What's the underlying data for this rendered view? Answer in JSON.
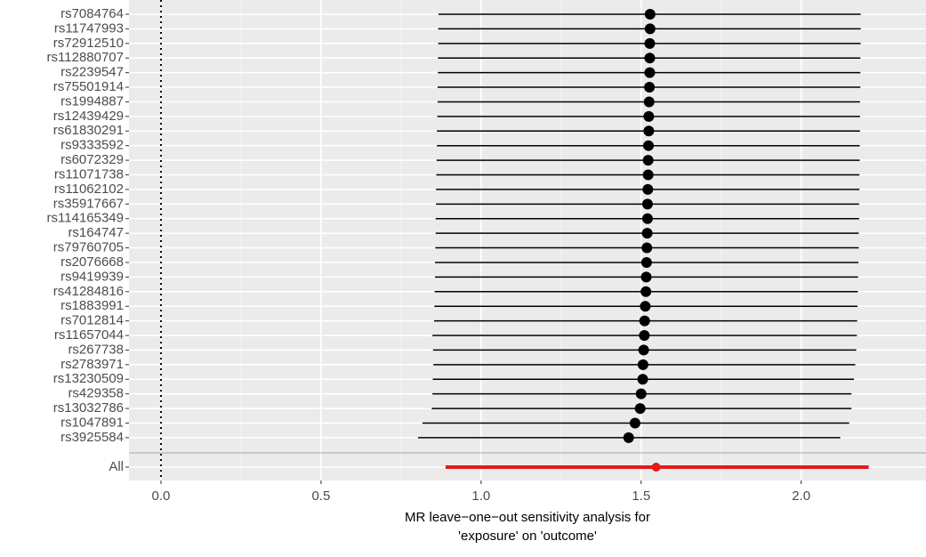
{
  "chart_data": {
    "type": "forest",
    "xlabel": [
      "MR leave−one−out sensitivity analysis for",
      "'exposure' on 'outcome'"
    ],
    "categories": [
      "rs7084764",
      "rs11747993",
      "rs72912510",
      "rs112880707",
      "rs2239547",
      "rs75501914",
      "rs1994887",
      "rs12439429",
      "rs61830291",
      "rs9333592",
      "rs6072329",
      "rs11071738",
      "rs11062102",
      "rs35917667",
      "rs114165349",
      "rs164747",
      "rs79760705",
      "rs2076668",
      "rs9419939",
      "rs41284816",
      "rs1883991",
      "rs7012814",
      "rs11657044",
      "rs267738",
      "rs2783971",
      "rs13230509",
      "rs429358",
      "rs13032786",
      "rs1047891",
      "rs3925584",
      "All"
    ],
    "values": [
      1.528,
      1.528,
      1.527,
      1.527,
      1.527,
      1.526,
      1.525,
      1.524,
      1.524,
      1.523,
      1.522,
      1.522,
      1.521,
      1.52,
      1.52,
      1.519,
      1.518,
      1.517,
      1.516,
      1.515,
      1.513,
      1.511,
      1.51,
      1.508,
      1.506,
      1.505,
      1.5,
      1.497,
      1.481,
      1.461,
      1.547
    ],
    "lower": [
      0.867,
      0.866,
      0.866,
      0.865,
      0.865,
      0.864,
      0.864,
      0.863,
      0.862,
      0.862,
      0.861,
      0.86,
      0.859,
      0.859,
      0.858,
      0.858,
      0.857,
      0.856,
      0.856,
      0.855,
      0.854,
      0.853,
      0.848,
      0.85,
      0.851,
      0.849,
      0.848,
      0.846,
      0.817,
      0.803,
      0.889
    ],
    "upper": [
      2.186,
      2.186,
      2.186,
      2.185,
      2.185,
      2.185,
      2.184,
      2.184,
      2.184,
      2.183,
      2.183,
      2.182,
      2.182,
      2.181,
      2.181,
      2.18,
      2.18,
      2.179,
      2.178,
      2.177,
      2.176,
      2.175,
      2.174,
      2.172,
      2.169,
      2.165,
      2.157,
      2.157,
      2.15,
      2.122,
      2.211
    ],
    "colors": [
      "#000000",
      "#000000",
      "#000000",
      "#000000",
      "#000000",
      "#000000",
      "#000000",
      "#000000",
      "#000000",
      "#000000",
      "#000000",
      "#000000",
      "#000000",
      "#000000",
      "#000000",
      "#000000",
      "#000000",
      "#000000",
      "#000000",
      "#000000",
      "#000000",
      "#000000",
      "#000000",
      "#000000",
      "#000000",
      "#000000",
      "#000000",
      "#000000",
      "#000000",
      "#000000",
      "#e41a1c"
    ],
    "xlim": [
      -0.1,
      2.39
    ],
    "xticks": [
      {
        "value": 0,
        "label": "0.0"
      },
      0.5,
      {
        "value": 1,
        "label": "1.0"
      },
      1.5,
      {
        "value": 2,
        "label": "2.0"
      }
    ],
    "xintercept": 0,
    "grid": true
  }
}
